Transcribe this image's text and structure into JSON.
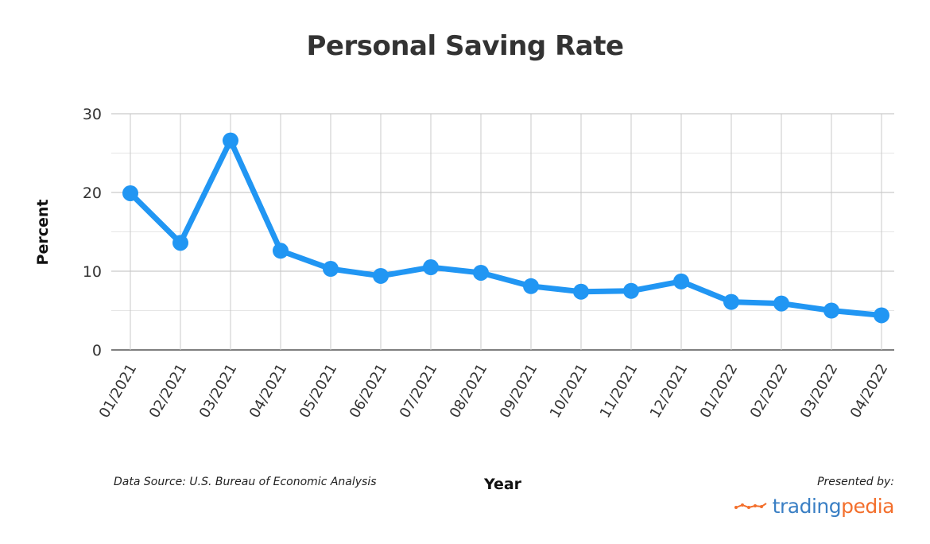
{
  "chart_data": {
    "type": "line",
    "title": "Personal Saving Rate",
    "xlabel": "Year",
    "ylabel": "Percent",
    "categories": [
      "01/2021",
      "02/2021",
      "03/2021",
      "04/2021",
      "05/2021",
      "06/2021",
      "07/2021",
      "08/2021",
      "09/2021",
      "10/2021",
      "11/2021",
      "12/2021",
      "01/2022",
      "02/2022",
      "03/2022",
      "04/2022"
    ],
    "series": [
      {
        "values": [
          19.9,
          13.6,
          26.6,
          12.6,
          10.3,
          9.4,
          10.5,
          9.8,
          8.1,
          7.4,
          7.5,
          8.7,
          6.1,
          5.9,
          5.0,
          4.4
        ]
      }
    ],
    "ylim": [
      0,
      30
    ],
    "yticks": [
      0,
      10,
      20,
      30
    ],
    "grid": true,
    "line_color": "#2196f3"
  },
  "footer": {
    "source": "Data Source: U.S. Bureau of Economic Analysis",
    "presented_by": "Presented by:",
    "brand_part1": "trading",
    "brand_part2": "pedia"
  }
}
